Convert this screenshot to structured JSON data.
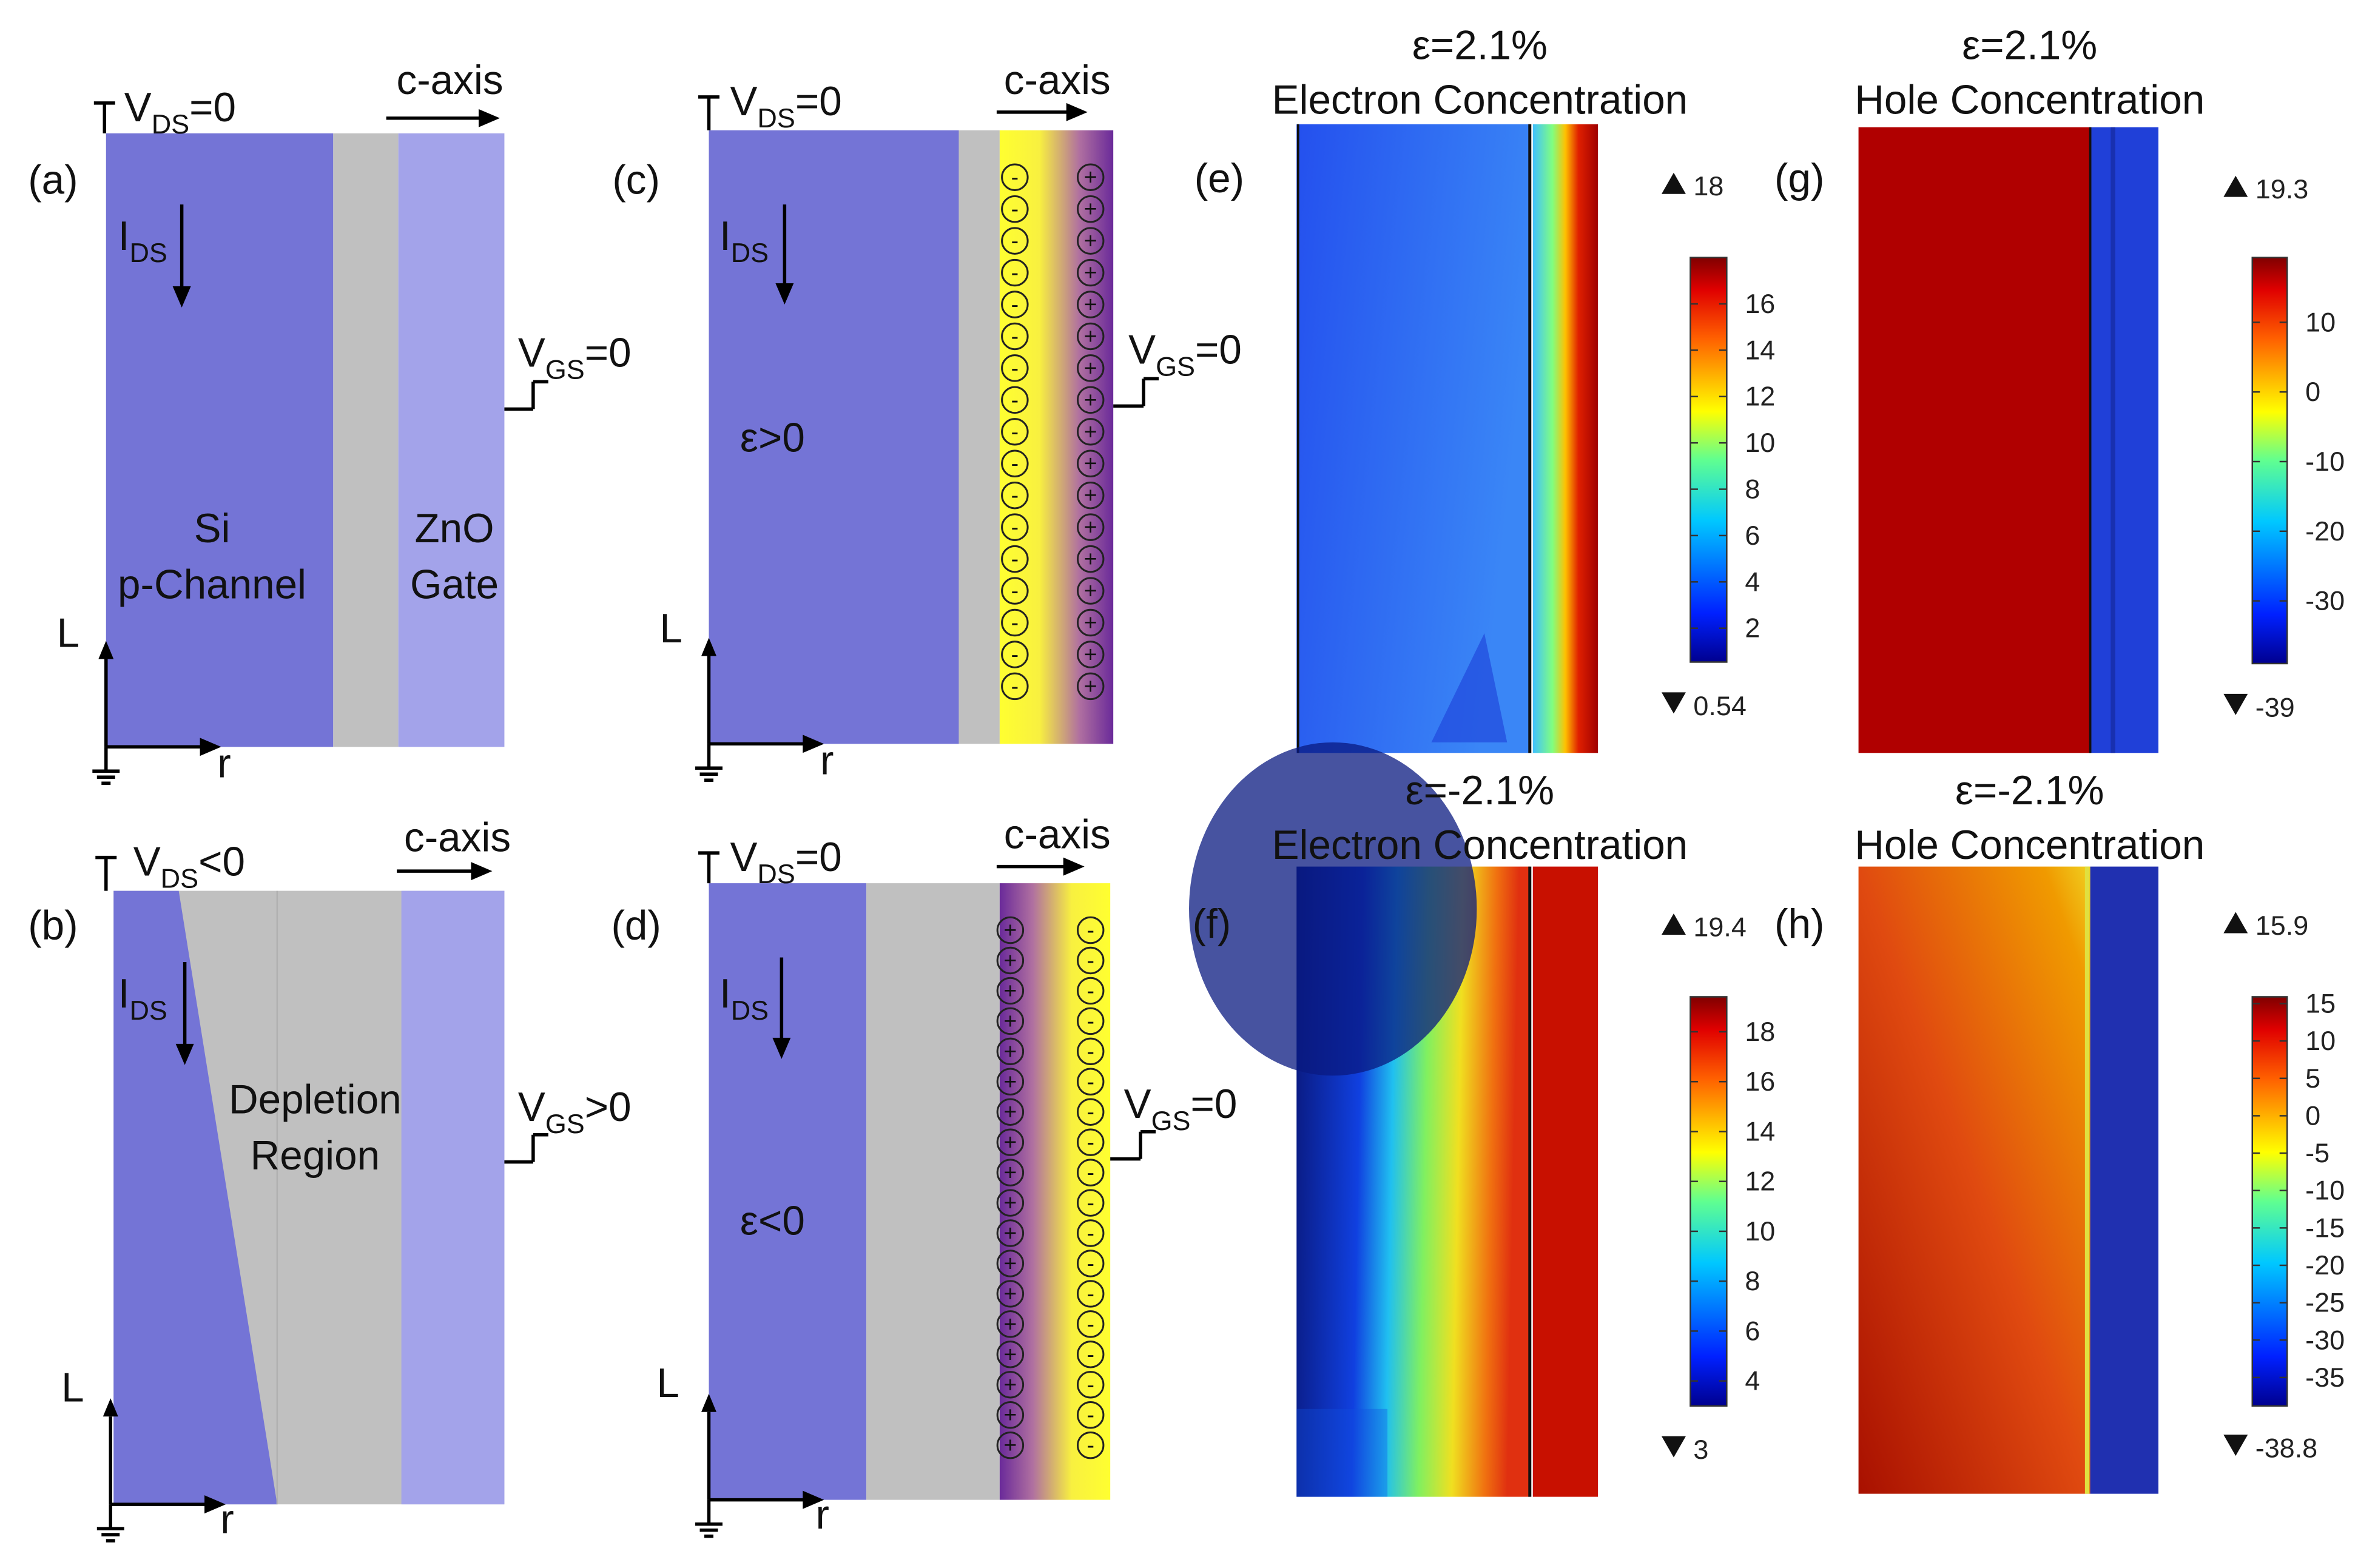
{
  "charges": [
    "-",
    "+"
  ],
  "panels": [
    {
      "label": "(a)",
      "vds": [
        "V",
        "DS",
        "=0"
      ],
      "axis": "c-axis",
      "ids": [
        "I",
        "DS"
      ],
      "vgs": [
        "V",
        "GS",
        "=0"
      ],
      "regions": [
        "Si",
        "p-Channel",
        "ZnO",
        "Gate"
      ],
      "L": "L",
      "r": "r"
    },
    {
      "label": "(b)",
      "vds": [
        "V",
        "DS",
        "<0"
      ],
      "axis": "c-axis",
      "ids": [
        "I",
        "DS"
      ],
      "vgs": [
        "V",
        "GS",
        ">0"
      ],
      "regions": [
        "Depletion",
        "Region"
      ],
      "L": "L",
      "r": "r"
    },
    {
      "label": "(c)",
      "vds": [
        "V",
        "DS",
        "=0"
      ],
      "axis": "c-axis",
      "ids": [
        "I",
        "DS"
      ],
      "vgs": [
        "V",
        "GS",
        "=0"
      ],
      "regions": [
        "ε>0"
      ],
      "L": "L",
      "r": "r"
    },
    {
      "label": "(d)",
      "vds": [
        "V",
        "DS",
        "=0"
      ],
      "axis": "c-axis",
      "ids": [
        "I",
        "DS"
      ],
      "vgs": [
        "V",
        "GS",
        "=0"
      ],
      "regions": [
        "ε<0"
      ],
      "L": "L",
      "r": "r"
    }
  ],
  "maps": [
    {
      "label": "(e)",
      "strain": "ε=2.1%",
      "title": "Electron Concentration",
      "max": 18,
      "min": 0.54,
      "ticks": [
        16,
        14,
        12,
        10,
        8,
        6,
        4,
        2
      ]
    },
    {
      "label": "(g)",
      "strain": "ε=2.1%",
      "title": "Hole Concentration",
      "max": 19.3,
      "min": -39,
      "ticks": [
        10,
        0,
        -10,
        -20,
        -30
      ]
    },
    {
      "label": "(f)",
      "strain": "ε=-2.1%",
      "title": "Electron Concentration",
      "max": 19.4,
      "min": 3,
      "ticks": [
        18,
        16,
        14,
        12,
        10,
        8,
        6,
        4
      ]
    },
    {
      "label": "(h)",
      "strain": "ε=-2.1%",
      "title": "Hole Concentration",
      "max": 15.9,
      "min": -38.8,
      "ticks": [
        15,
        10,
        5,
        0,
        -5,
        -10,
        -15,
        -20,
        -25,
        -30,
        -35
      ]
    }
  ]
}
